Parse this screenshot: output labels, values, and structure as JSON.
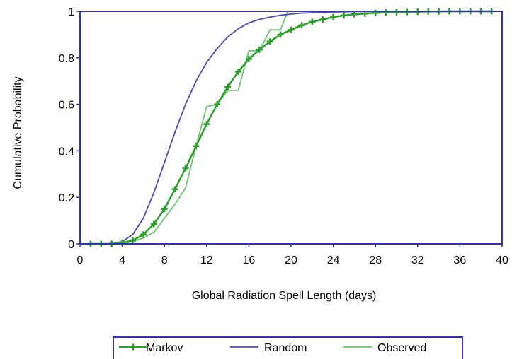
{
  "chart_data": {
    "type": "line",
    "xlabel": "Global Radiation Spell Length (days)",
    "ylabel": "Cumulative Probability",
    "xlim": [
      0,
      40
    ],
    "ylim": [
      0,
      1
    ],
    "xticks": [
      "0",
      "4",
      "8",
      "12",
      "16",
      "20",
      "24",
      "28",
      "32",
      "36",
      "40"
    ],
    "yticks": [
      "0",
      "0.2",
      "0.4",
      "0.6",
      "0.8",
      "1"
    ],
    "grid": false,
    "legend": "bottom",
    "series": [
      {
        "name": "Markov",
        "color": "#2aa02a",
        "marker": "plus",
        "x": [
          1,
          2,
          3,
          4,
          5,
          6,
          7,
          8,
          9,
          10,
          11,
          12,
          13,
          14,
          15,
          16,
          17,
          18,
          19,
          20,
          21,
          22,
          23,
          24,
          25,
          26,
          27,
          28,
          29,
          30,
          31,
          32,
          33,
          34,
          35,
          36,
          37,
          38,
          39
        ],
        "y": [
          0,
          0,
          0,
          0.005,
          0.015,
          0.04,
          0.085,
          0.15,
          0.235,
          0.325,
          0.42,
          0.515,
          0.6,
          0.675,
          0.74,
          0.795,
          0.835,
          0.87,
          0.9,
          0.92,
          0.94,
          0.955,
          0.965,
          0.975,
          0.982,
          0.987,
          0.99,
          0.993,
          0.995,
          0.996,
          0.997,
          0.998,
          0.999,
          0.999,
          1,
          1,
          1,
          1,
          1
        ]
      },
      {
        "name": "Random",
        "color": "#4b4bb0",
        "x": [
          1,
          2,
          3,
          4,
          5,
          6,
          7,
          8,
          9,
          10,
          11,
          12,
          13,
          14,
          15,
          16,
          17,
          18,
          19,
          20,
          21,
          22,
          23,
          24,
          25,
          26,
          27,
          28,
          30,
          32,
          34,
          36,
          38,
          40
        ],
        "y": [
          0,
          0,
          0,
          0.01,
          0.04,
          0.11,
          0.22,
          0.35,
          0.48,
          0.6,
          0.7,
          0.78,
          0.84,
          0.89,
          0.925,
          0.95,
          0.965,
          0.975,
          0.983,
          0.988,
          0.992,
          0.994,
          0.996,
          0.997,
          0.998,
          0.999,
          0.999,
          1,
          1,
          1,
          1,
          1,
          1,
          1
        ]
      },
      {
        "name": "Observed",
        "color": "#6cc46c",
        "x": [
          1,
          2,
          3,
          4,
          5,
          6,
          7,
          8,
          9,
          10,
          11,
          12,
          13,
          14,
          15,
          16,
          17,
          18,
          19,
          19.7,
          20
        ],
        "y": [
          0,
          0,
          0,
          0,
          0.01,
          0.025,
          0.05,
          0.11,
          0.17,
          0.24,
          0.42,
          0.59,
          0.6,
          0.66,
          0.66,
          0.83,
          0.83,
          0.92,
          0.92,
          1,
          1
        ]
      }
    ]
  }
}
